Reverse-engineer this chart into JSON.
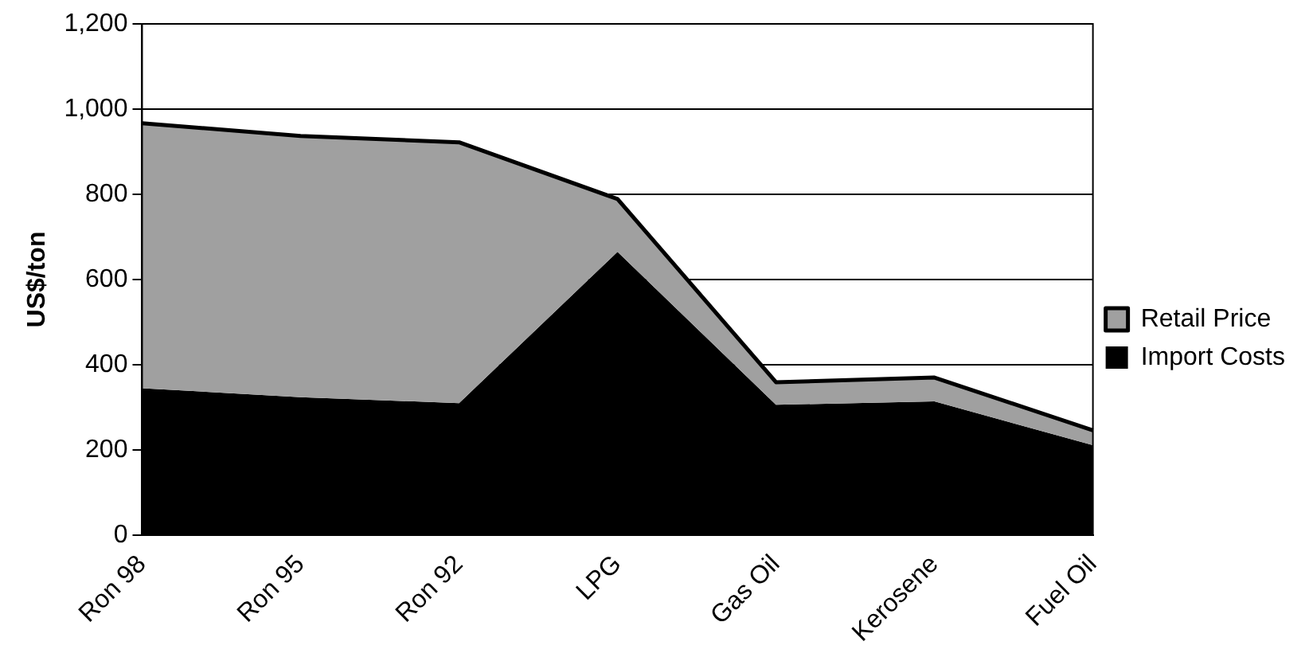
{
  "chart_data": {
    "type": "area",
    "ylabel": "US$/ton",
    "categories": [
      "Ron 98",
      "Ron 95",
      "Ron 92",
      "LPG",
      "Gas Oil",
      "Kerosene",
      "Fuel Oil"
    ],
    "series": [
      {
        "name": "Retail Price",
        "color": "#a0a0a0",
        "values": [
          967,
          937,
          922,
          789,
          359,
          370,
          246
        ]
      },
      {
        "name": "Import Costs",
        "color": "#000000",
        "values": [
          345,
          324,
          310,
          665,
          306,
          314,
          211
        ]
      }
    ],
    "ylim": [
      0,
      1200
    ],
    "yticks": [
      {
        "value": 0,
        "label": "0"
      },
      {
        "value": 200,
        "label": "200"
      },
      {
        "value": 400,
        "label": "400"
      },
      {
        "value": 600,
        "label": "600"
      },
      {
        "value": 800,
        "label": "800"
      },
      {
        "value": 1000,
        "label": "1,000"
      },
      {
        "value": 1200,
        "label": "1,200"
      }
    ],
    "grid": "y",
    "legend": "right"
  }
}
